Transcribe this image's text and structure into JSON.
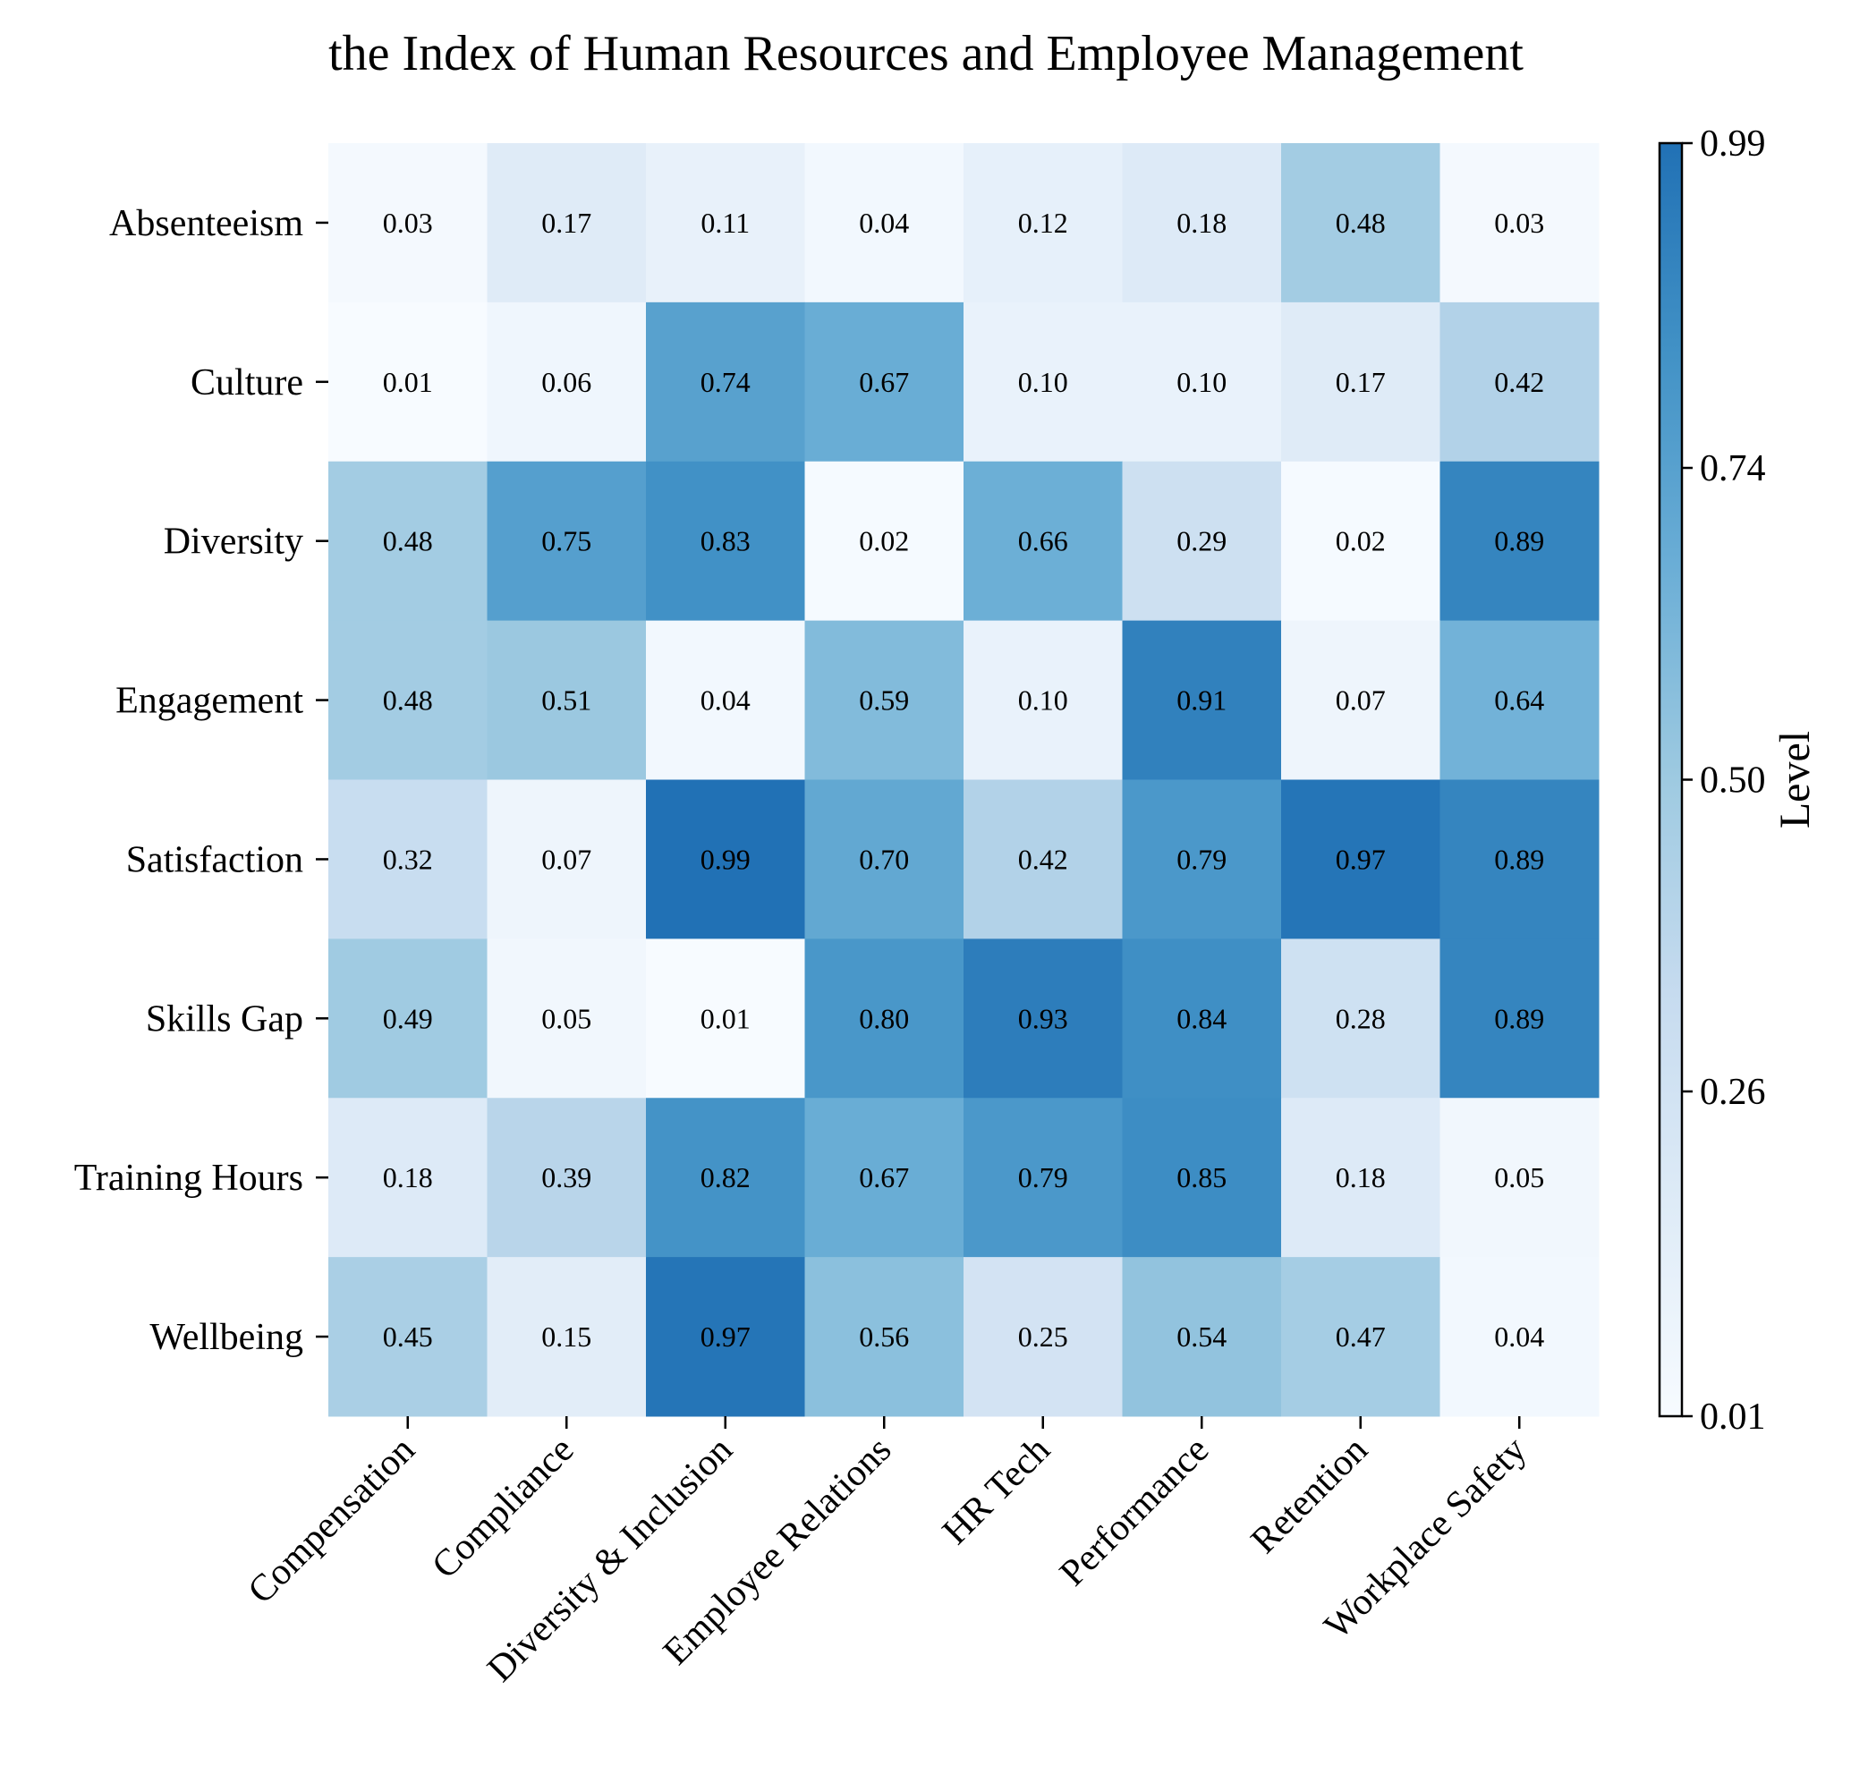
{
  "chart_data": {
    "type": "heatmap",
    "title": "the Index of Human Resources and Employee Management",
    "x_categories": [
      "Compensation",
      "Compliance",
      "Diversity & Inclusion",
      "Employee Relations",
      "HR Tech",
      "Performance",
      "Retention",
      "Workplace Safety"
    ],
    "y_categories": [
      "Absenteeism",
      "Culture",
      "Diversity",
      "Engagement",
      "Satisfaction",
      "Skills Gap",
      "Training Hours",
      "Wellbeing"
    ],
    "values": [
      [
        0.03,
        0.17,
        0.11,
        0.04,
        0.12,
        0.18,
        0.48,
        0.03
      ],
      [
        0.01,
        0.06,
        0.74,
        0.67,
        0.1,
        0.1,
        0.17,
        0.42
      ],
      [
        0.48,
        0.75,
        0.83,
        0.02,
        0.66,
        0.29,
        0.02,
        0.89
      ],
      [
        0.48,
        0.51,
        0.04,
        0.59,
        0.1,
        0.91,
        0.07,
        0.64
      ],
      [
        0.32,
        0.07,
        0.99,
        0.7,
        0.42,
        0.79,
        0.97,
        0.89
      ],
      [
        0.49,
        0.05,
        0.01,
        0.8,
        0.93,
        0.84,
        0.28,
        0.89
      ],
      [
        0.18,
        0.39,
        0.82,
        0.67,
        0.79,
        0.85,
        0.18,
        0.05
      ],
      [
        0.45,
        0.15,
        0.97,
        0.56,
        0.25,
        0.54,
        0.47,
        0.04
      ]
    ],
    "value_range": [
      0.01,
      0.99
    ],
    "colormap": [
      "#f7fbff",
      "#deebf7",
      "#c6dbef",
      "#9ecae1",
      "#6baed6",
      "#4292c6",
      "#2171b5"
    ],
    "colorbar": {
      "label": "Level",
      "ticks": [
        0.01,
        0.26,
        0.5,
        0.74,
        0.99
      ],
      "tick_labels": [
        "0.01",
        "0.26",
        "0.50",
        "0.74",
        "0.99"
      ]
    },
    "grid": false,
    "legend": "colorbar-right"
  }
}
